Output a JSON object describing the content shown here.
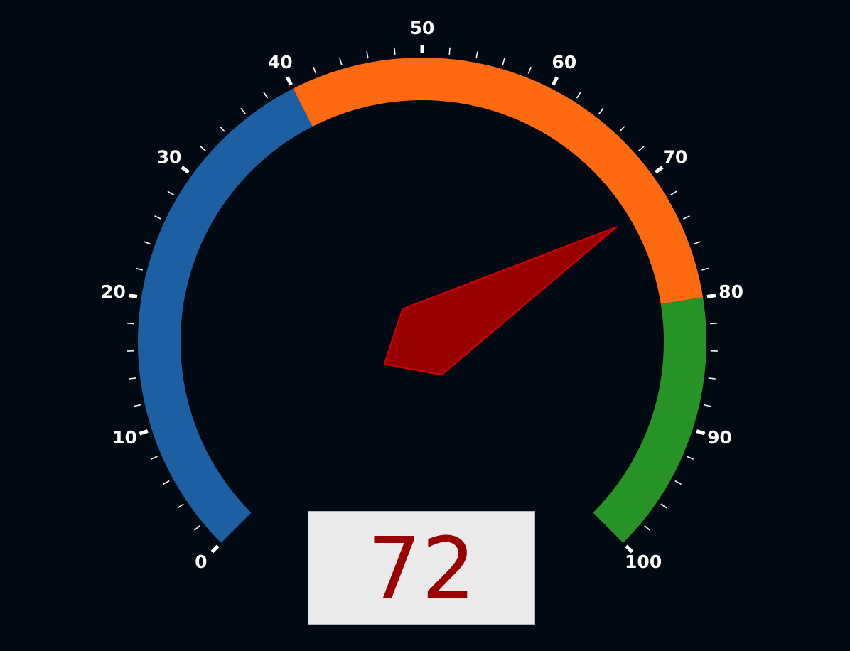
{
  "colors": {
    "background": "#010a12",
    "tick": "#ffffff",
    "label": "#ffffff",
    "needle_fill": "#990000",
    "needle_stroke": "#d40000",
    "readout_text": "#990000",
    "readout_bg": "#eaeaea"
  },
  "chart_data": {
    "type": "gauge",
    "min": 0,
    "max": 100,
    "value": 72,
    "major_tick_step": 10,
    "minor_tick_step": 2,
    "tick_labels": [
      "0",
      "10",
      "20",
      "30",
      "40",
      "50",
      "60",
      "70",
      "80",
      "90",
      "100"
    ],
    "bands": [
      {
        "from": 0,
        "to": 40,
        "color": "#1c5fa3"
      },
      {
        "from": 40,
        "to": 80,
        "color": "#fd6a0f"
      },
      {
        "from": 80,
        "to": 100,
        "color": "#279225"
      }
    ]
  },
  "readout": {
    "value": "72"
  }
}
